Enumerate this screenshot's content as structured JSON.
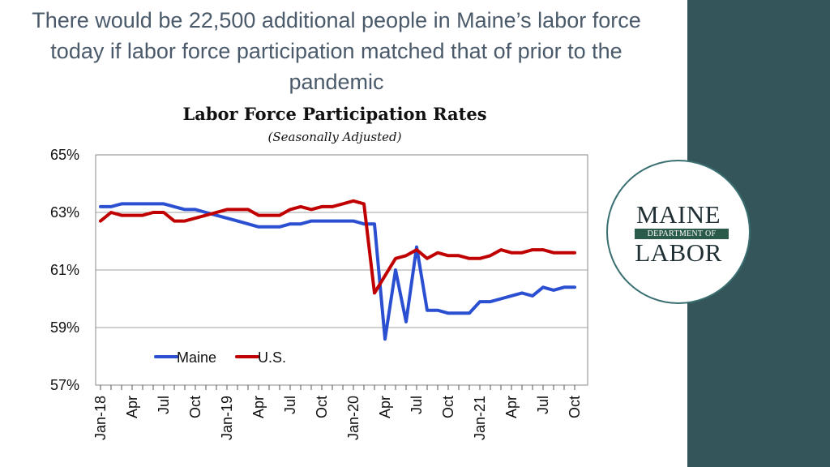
{
  "headline": "There would be 22,500 additional people in Maine’s labor force today if labor force participation matched that of prior to the pandemic",
  "logo": {
    "top": "MAINE",
    "middle": "DEPARTMENT OF",
    "bottom": "LABOR"
  },
  "colors": {
    "maine": "#2b4fd1",
    "us": "#c00000",
    "panel": "#34565a",
    "grid": "#a0a0a0"
  },
  "chart_data": {
    "type": "line",
    "title": "Labor Force Participation Rates",
    "subtitle": "(Seasonally Adjusted)",
    "ylim": [
      57,
      65
    ],
    "yticks": [
      57,
      59,
      61,
      63,
      65
    ],
    "yticklabels": [
      "57%",
      "59%",
      "61%",
      "63%",
      "65%"
    ],
    "xticklabels": [
      "Jan-18",
      "Apr",
      "Jul",
      "Oct",
      "Jan-19",
      "Apr",
      "Jul",
      "Oct",
      "Jan-20",
      "Apr",
      "Jul",
      "Oct",
      "Jan-21",
      "Apr",
      "Jul",
      "Oct"
    ],
    "xticklabel_months": [
      0,
      3,
      6,
      9,
      12,
      15,
      18,
      21,
      24,
      27,
      30,
      33,
      36,
      39,
      42,
      45
    ],
    "months_total": 46,
    "legend_position": "lower-left",
    "grid": true,
    "series": [
      {
        "name": "Maine",
        "values": [
          63.2,
          63.2,
          63.3,
          63.3,
          63.3,
          63.3,
          63.3,
          63.2,
          63.1,
          63.1,
          63.0,
          62.9,
          62.8,
          62.7,
          62.6,
          62.5,
          62.5,
          62.5,
          62.6,
          62.6,
          62.7,
          62.7,
          62.7,
          62.7,
          62.7,
          62.6,
          62.6,
          58.6,
          61.0,
          59.2,
          61.8,
          59.6,
          59.6,
          59.5,
          59.5,
          59.5,
          59.9,
          59.9,
          60.0,
          60.1,
          60.2,
          60.1,
          60.4,
          60.3,
          60.4,
          60.4
        ]
      },
      {
        "name": "U.S.",
        "values": [
          62.7,
          63.0,
          62.9,
          62.9,
          62.9,
          63.0,
          63.0,
          62.7,
          62.7,
          62.8,
          62.9,
          63.0,
          63.1,
          63.1,
          63.1,
          62.9,
          62.9,
          62.9,
          63.1,
          63.2,
          63.1,
          63.2,
          63.2,
          63.3,
          63.4,
          63.3,
          60.2,
          60.8,
          61.4,
          61.5,
          61.7,
          61.4,
          61.6,
          61.5,
          61.5,
          61.4,
          61.4,
          61.5,
          61.7,
          61.6,
          61.6,
          61.7,
          61.7,
          61.6,
          61.6,
          61.6
        ]
      }
    ]
  }
}
